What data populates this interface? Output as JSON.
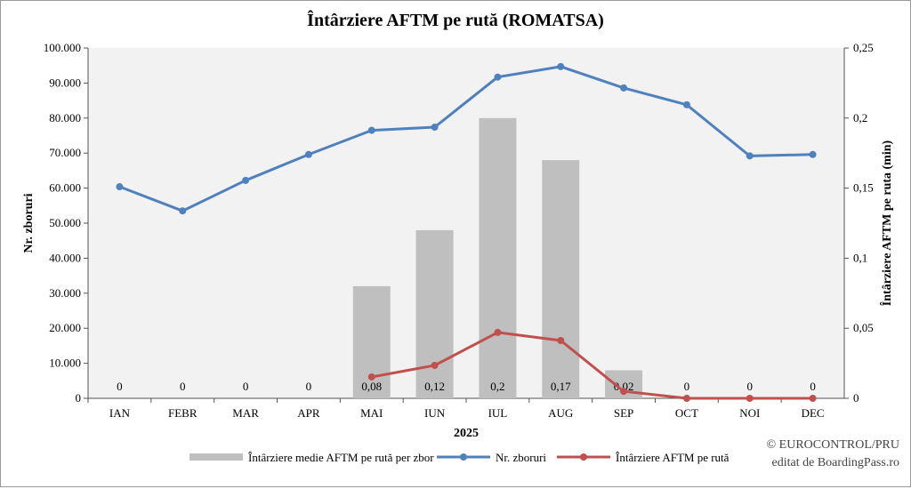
{
  "chart_data": {
    "type": "bar+line",
    "title": "Întârziere AFTM pe rută (ROMATSA)",
    "xlabel": "2025",
    "ylabel": "Nr. zboruri",
    "y2label": "Întârziere AFTM pe ruta (min)",
    "ylim": [
      0,
      100000
    ],
    "y2lim": [
      0,
      0.25
    ],
    "yticks": [
      "0",
      "10.000",
      "20.000",
      "30.000",
      "40.000",
      "50.000",
      "60.000",
      "70.000",
      "80.000",
      "90.000",
      "100.000"
    ],
    "y2ticks": [
      "0",
      "0,05",
      "0,1",
      "0,15",
      "0,2",
      "0,25"
    ],
    "categories": [
      "IAN",
      "FEBR",
      "MAR",
      "APR",
      "MAI",
      "IUN",
      "IUL",
      "AUG",
      "SEP",
      "OCT",
      "NOI",
      "DEC"
    ],
    "series": [
      {
        "name": "Întârziere medie AFTM pe rută per zbor",
        "type": "bar",
        "axis": "right",
        "color": "#bfbfbf",
        "values": [
          0,
          0,
          0,
          0,
          0.08,
          0.12,
          0.2,
          0.17,
          0.02,
          0,
          0,
          0
        ],
        "labels": [
          "0",
          "0",
          "0",
          "0",
          "0,08",
          "0,12",
          "0,2",
          "0,17",
          "0,02",
          "0",
          "0",
          "0"
        ]
      },
      {
        "name": "Nr. zboruri",
        "type": "line",
        "axis": "left",
        "color": "#4f81bd",
        "values": [
          60400,
          53500,
          62200,
          69600,
          76500,
          77400,
          91700,
          94700,
          88600,
          83800,
          69200,
          69600
        ]
      },
      {
        "name": "Întârziere AFTM pe rută",
        "type": "line",
        "axis": "left",
        "color": "#c0504d",
        "values": [
          null,
          null,
          null,
          null,
          6100,
          9400,
          18800,
          16500,
          2000,
          0,
          0,
          0
        ]
      }
    ],
    "grid": false,
    "legend": "bottom"
  },
  "credits": {
    "line1": "© EUROCONTROL/PRU",
    "line2": "editat de BoardingPass.ro"
  }
}
